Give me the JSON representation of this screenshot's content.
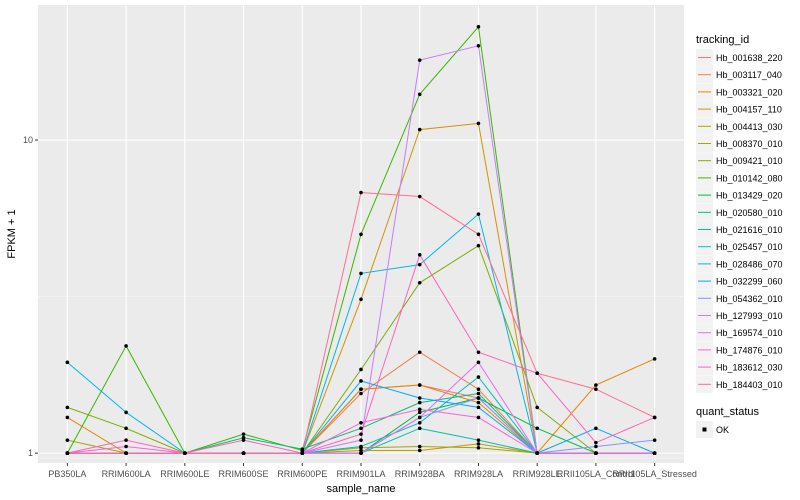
{
  "chart_data": {
    "type": "line",
    "xlabel": "sample_name",
    "ylabel": "FPKM + 1",
    "y_scale": "log10",
    "ylim": [
      0.93,
      27
    ],
    "y_ticks": [
      1,
      10
    ],
    "y_tick_labels": [
      "1",
      "10"
    ],
    "grid": true,
    "legend_position": "right",
    "categories": [
      "PB350LA",
      "RRIM600LA",
      "RRIM600LE",
      "RRIM600SE",
      "RRIM600PE",
      "RRIM901LA",
      "RRIM928BA",
      "RRIM928LA",
      "RRIM928LE",
      "RRII105LA_Control",
      "RRII105LA_Stressed"
    ],
    "legend_title": "tracking_id",
    "series": [
      {
        "name": "Hb_001638_220",
        "color": "#F8766D",
        "values": [
          1,
          1,
          1,
          1,
          1,
          1.6,
          1.65,
          1.5,
          1,
          1,
          1
        ]
      },
      {
        "name": "Hb_003117_040",
        "color": "#F07E4A",
        "values": [
          1,
          1,
          1,
          1,
          1,
          1.55,
          2.1,
          1.6,
          1,
          1,
          1
        ]
      },
      {
        "name": "Hb_003321_020",
        "color": "#E58700",
        "values": [
          1.3,
          1,
          1,
          1,
          1,
          1.6,
          1.65,
          1.45,
          1,
          1.65,
          2
        ]
      },
      {
        "name": "Hb_004157_110",
        "color": "#D39200",
        "values": [
          1,
          1,
          1,
          1,
          1,
          3.1,
          10.8,
          11.3,
          1,
          1,
          1
        ]
      },
      {
        "name": "Hb_004413_030",
        "color": "#C09B00",
        "values": [
          1,
          1,
          1,
          1,
          1,
          1.02,
          1.02,
          1.07,
          1,
          1,
          1
        ]
      },
      {
        "name": "Hb_008370_010",
        "color": "#A3A500",
        "values": [
          1.1,
          1,
          1,
          1,
          1,
          1.04,
          1.05,
          1.04,
          1,
          1,
          1
        ]
      },
      {
        "name": "Hb_009421_010",
        "color": "#7CAE00",
        "values": [
          1.4,
          1.2,
          1,
          1,
          1,
          1.85,
          3.5,
          4.6,
          1.4,
          1,
          1
        ]
      },
      {
        "name": "Hb_010142_080",
        "color": "#39B600",
        "values": [
          1,
          2.2,
          1,
          1.15,
          1.02,
          5,
          14,
          23,
          1,
          1,
          1
        ]
      },
      {
        "name": "Hb_013429_020",
        "color": "#00BB4E",
        "values": [
          1,
          1,
          1,
          1,
          1,
          1,
          1.35,
          1.5,
          1.2,
          1,
          1
        ]
      },
      {
        "name": "Hb_020580_010",
        "color": "#00BF7D",
        "values": [
          1,
          1,
          1,
          1.12,
          1.03,
          1.2,
          1.45,
          1.55,
          1,
          1,
          1
        ]
      },
      {
        "name": "Hb_021616_010",
        "color": "#00C1A3",
        "values": [
          1,
          1,
          1,
          1,
          1,
          1,
          1.2,
          1.1,
          1,
          1,
          1
        ]
      },
      {
        "name": "Hb_025457_010",
        "color": "#00BFC4",
        "values": [
          1,
          1,
          1,
          1,
          1,
          1.05,
          1.25,
          1.75,
          1,
          1,
          1
        ]
      },
      {
        "name": "Hb_028486_070",
        "color": "#00B8E7",
        "values": [
          1.95,
          1.35,
          1,
          1,
          1,
          3.75,
          4,
          5.8,
          1,
          1,
          1
        ]
      },
      {
        "name": "Hb_032299_060",
        "color": "#00A9FF",
        "values": [
          1,
          1,
          1,
          1,
          1,
          1.7,
          1.5,
          1.4,
          1,
          1.2,
          1
        ]
      },
      {
        "name": "Hb_054362_010",
        "color": "#8494FF",
        "values": [
          1,
          1,
          1,
          1,
          1,
          1,
          1.3,
          1.5,
          1,
          1.05,
          1.1
        ]
      },
      {
        "name": "Hb_127993_010",
        "color": "#C77CFF",
        "values": [
          1,
          1,
          1,
          1,
          1,
          1.1,
          18,
          20,
          1,
          1,
          1
        ]
      },
      {
        "name": "Hb_169574_010",
        "color": "#E76BF3",
        "values": [
          1,
          1,
          1,
          1,
          1,
          1,
          1.3,
          1.95,
          1,
          1,
          1
        ]
      },
      {
        "name": "Hb_174876_010",
        "color": "#FA62DB",
        "values": [
          1,
          1.05,
          1,
          1,
          1,
          1.25,
          1.38,
          1.3,
          1,
          1,
          1
        ]
      },
      {
        "name": "Hb_183612_030",
        "color": "#FF62BC",
        "values": [
          1,
          1.1,
          1,
          1.1,
          1,
          1.15,
          4.3,
          2.1,
          1.8,
          1.08,
          1.3
        ]
      },
      {
        "name": "Hb_184403_010",
        "color": "#FF6C91",
        "values": [
          1,
          1,
          1,
          1,
          1,
          6.8,
          6.6,
          5,
          1.8,
          1.6,
          1.3
        ]
      }
    ],
    "quant_status": {
      "title": "quant_status",
      "entries": [
        "OK"
      ]
    }
  }
}
